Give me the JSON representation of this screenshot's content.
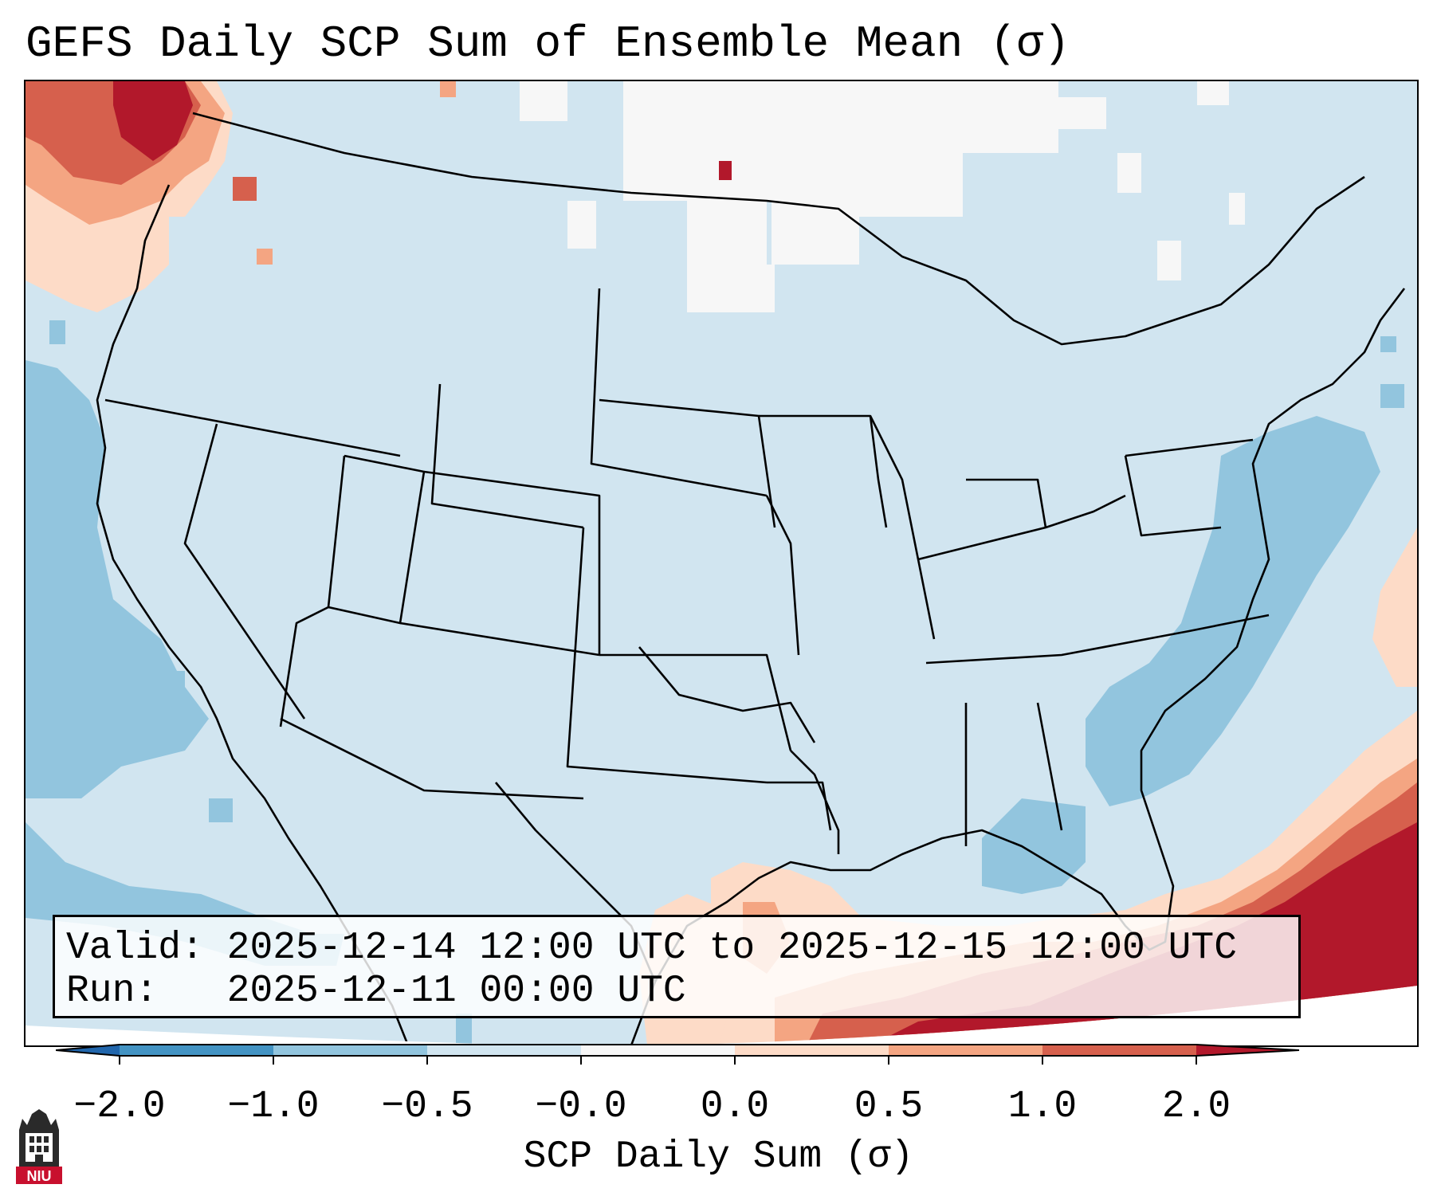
{
  "title": "GEFS Daily SCP Sum of Ensemble Mean (σ)",
  "valid_line": "Valid: 2025-12-14 12:00 UTC to 2025-12-15 12:00 UTC",
  "run_line": "Run:   2025-12-11 00:00 UTC",
  "colorbar": {
    "label": "SCP Daily Sum (σ)",
    "ticks": [
      "−2.0",
      "−1.0",
      "−0.5",
      "−0.0",
      "0.0",
      "0.5",
      "1.0",
      "2.0"
    ],
    "colors": [
      "#4393c3",
      "#92c5de",
      "#d1e5f0",
      "#f7f7f7",
      "#fddbc7",
      "#f4a582",
      "#d6604d",
      "#b2182b"
    ],
    "under_color": "#2166ac",
    "over_color": "#b2182b"
  },
  "logo": {
    "text": "NIU",
    "color": "#c8102e"
  },
  "map": {
    "projection": "Lambert Conformal",
    "region": "CONUS",
    "background_value_color": "#d1e5f0",
    "regions": [
      {
        "name": "Pacific Northwest",
        "level": "high",
        "color": "#b2182b"
      },
      {
        "name": "Gulf of Mexico / Florida / Caribbean",
        "level": "high",
        "color": "#b2182b"
      },
      {
        "name": "South Texas coast",
        "level": "moderate",
        "color": "#f4a582"
      },
      {
        "name": "Western Atlantic",
        "level": "low",
        "color": "#92c5de"
      },
      {
        "name": "Eastern Pacific",
        "level": "low",
        "color": "#92c5de"
      },
      {
        "name": "Southern Canada / North Dakota",
        "level": "near zero",
        "color": "#f7f7f7"
      }
    ]
  }
}
